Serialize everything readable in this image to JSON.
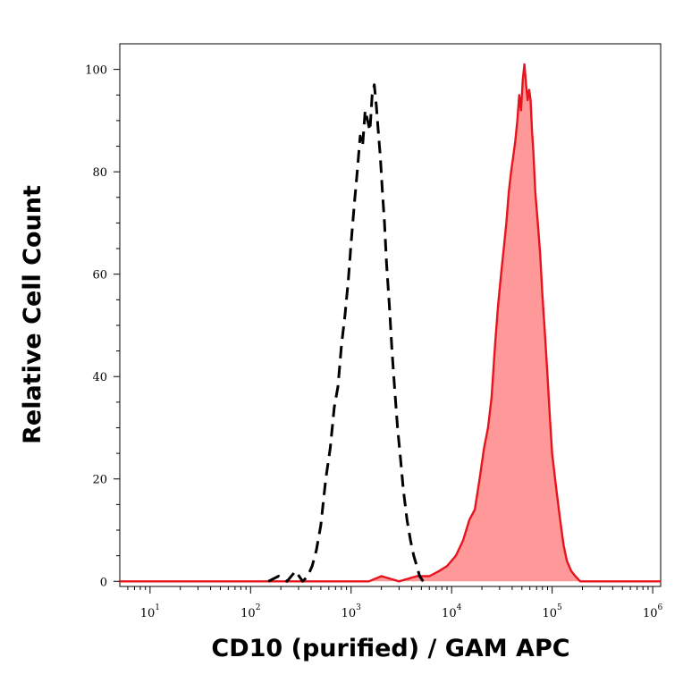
{
  "chart_data": {
    "type": "area",
    "title": "",
    "xlabel": "CD10 (purified) / GAM APC",
    "ylabel": "Relative Cell Count",
    "x_scale": "log",
    "xlim": [
      5,
      1200000
    ],
    "ylim": [
      -1,
      105
    ],
    "x_ticks": [
      {
        "base": "10",
        "exp": "1",
        "value": 10
      },
      {
        "base": "10",
        "exp": "2",
        "value": 100
      },
      {
        "base": "10",
        "exp": "3",
        "value": 1000
      },
      {
        "base": "10",
        "exp": "4",
        "value": 10000
      },
      {
        "base": "10",
        "exp": "5",
        "value": 100000
      },
      {
        "base": "10",
        "exp": "6",
        "value": 1000000
      }
    ],
    "y_ticks": [
      {
        "label": "0",
        "value": 0
      },
      {
        "label": "20",
        "value": 20
      },
      {
        "label": "40",
        "value": 40
      },
      {
        "label": "60",
        "value": 60
      },
      {
        "label": "80",
        "value": 80
      },
      {
        "label": "100",
        "value": 100
      }
    ],
    "grid": false,
    "legend": "none",
    "series": [
      {
        "style": "dashed-black-line",
        "color": "#000000",
        "x": [
          150,
          190,
          230,
          280,
          330,
          370,
          410,
          450,
          500,
          560,
          620,
          680,
          740,
          800,
          870,
          940,
          1000,
          1080,
          1150,
          1230,
          1300,
          1380,
          1460,
          1540,
          1620,
          1700,
          1780,
          1860,
          1950,
          2050,
          2150,
          2250,
          2400,
          2550,
          2700,
          2900,
          3100,
          3300,
          3600,
          3900,
          4200,
          4500,
          4800,
          5200
        ],
        "y": [
          0,
          1,
          0,
          2,
          0,
          1,
          3,
          6,
          11,
          20,
          26,
          34,
          38,
          46,
          52,
          59,
          66,
          74,
          80,
          87,
          85,
          92,
          90,
          88,
          95,
          97,
          93,
          88,
          83,
          76,
          70,
          62,
          54,
          45,
          38,
          30,
          24,
          18,
          12,
          8,
          5,
          3,
          1,
          0
        ]
      },
      {
        "style": "red-filled-area",
        "color": "#e8141d",
        "fill": "#ff9898",
        "x": [
          5,
          1500,
          2000,
          3000,
          4500,
          6000,
          7500,
          9000,
          11000,
          13000,
          15000,
          17000,
          19000,
          21000,
          23000,
          25000,
          27000,
          29000,
          31000,
          33000,
          35000,
          37000,
          39000,
          41000,
          43000,
          45000,
          47000,
          49000,
          51000,
          53000,
          55000,
          57000,
          59000,
          61000,
          63000,
          65000,
          68000,
          72000,
          76000,
          80000,
          85000,
          90000,
          95000,
          100000,
          110000,
          120000,
          130000,
          140000,
          155000,
          170000,
          190000,
          250000,
          1200000
        ],
        "y": [
          0,
          0,
          1,
          0,
          1,
          1,
          2,
          3,
          5,
          8,
          12,
          14,
          20,
          26,
          30,
          36,
          46,
          54,
          60,
          65,
          70,
          76,
          80,
          83,
          86,
          90,
          95,
          92,
          98,
          101,
          97,
          94,
          96,
          94,
          88,
          84,
          76,
          70,
          64,
          56,
          48,
          40,
          32,
          25,
          18,
          12,
          7,
          4,
          2,
          1,
          0,
          0,
          0
        ]
      }
    ]
  }
}
